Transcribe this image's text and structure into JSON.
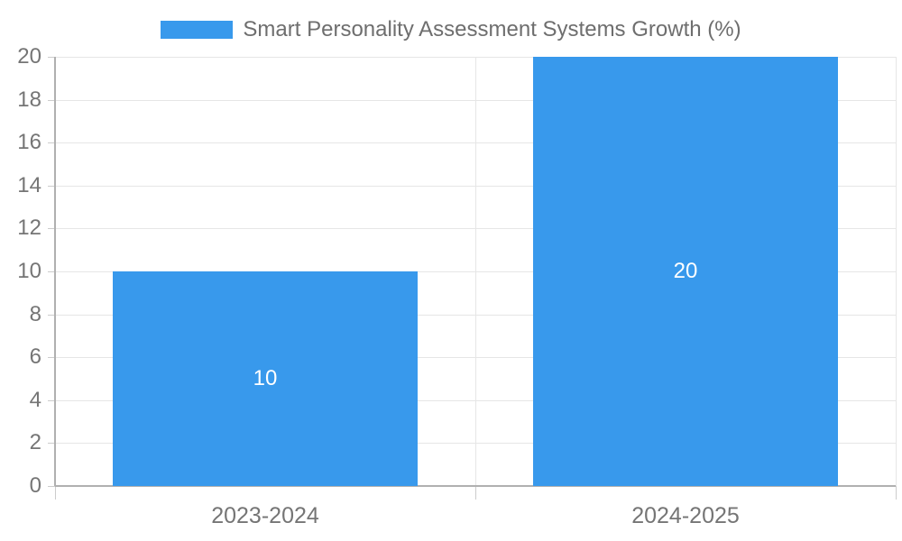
{
  "chart_data": {
    "type": "bar",
    "title": "Smart Personality Assessment Systems Growth (%)",
    "categories": [
      "2023-2024",
      "2024-2025"
    ],
    "series": [
      {
        "name": "Smart Personality Assessment Systems Growth (%)",
        "values": [
          10,
          20
        ]
      }
    ],
    "data_labels": [
      "10",
      "20"
    ],
    "xlabel": "",
    "ylabel": "",
    "ylim": [
      0,
      20
    ],
    "yticks": [
      0,
      2,
      4,
      6,
      8,
      10,
      12,
      14,
      16,
      18,
      20
    ],
    "grid": true,
    "legend_position": "top",
    "colors": {
      "bar": "#3899ec",
      "gridline": "#e6e6e6",
      "axis_line": "#b0b0b0",
      "tick": "#cccccc",
      "axis_text": "#757575",
      "title_text": "#6e6e6e",
      "data_label_text": "#ffffff",
      "background": "#ffffff"
    }
  }
}
